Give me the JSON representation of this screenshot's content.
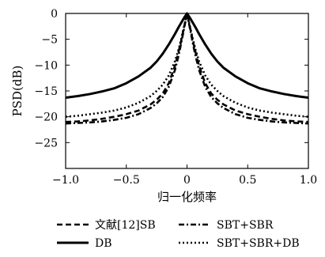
{
  "chart_data": {
    "type": "line",
    "xlabel": "归一化频率",
    "ylabel": "PSD(dB)",
    "xlim": [
      -1.0,
      1.0
    ],
    "ylim": [
      -30,
      0
    ],
    "x_ticks": [
      -1.0,
      -0.5,
      0,
      0.5,
      1.0
    ],
    "x_tick_labels": [
      "−1.0",
      "−0.5",
      "0",
      "0.5",
      "1.0"
    ],
    "y_ticks": [
      0,
      -5,
      -10,
      -15,
      -20,
      -25
    ],
    "y_tick_labels": [
      "0",
      "−5",
      "−10",
      "−15",
      "−20",
      "−25"
    ],
    "grid": false,
    "legend_position": "bottom",
    "x": [
      -1.0,
      -0.9,
      -0.8,
      -0.7,
      -0.6,
      -0.5,
      -0.4,
      -0.3,
      -0.25,
      -0.2,
      -0.15,
      -0.1,
      -0.07,
      -0.05,
      -0.03,
      -0.02,
      -0.01,
      0,
      0.01,
      0.02,
      0.03,
      0.05,
      0.07,
      0.1,
      0.15,
      0.2,
      0.25,
      0.3,
      0.4,
      0.5,
      0.6,
      0.7,
      0.8,
      0.9,
      1.0
    ],
    "series": [
      {
        "name": "文献[12]SB",
        "style": "dashed",
        "values": [
          -21.0,
          -20.9,
          -20.7,
          -20.4,
          -20.0,
          -19.5,
          -18.8,
          -17.6,
          -16.7,
          -15.5,
          -13.5,
          -10.2,
          -7.5,
          -5.5,
          -3.3,
          -2.2,
          -1.1,
          0,
          -1.1,
          -2.2,
          -3.3,
          -5.5,
          -7.5,
          -10.2,
          -13.5,
          -15.5,
          -16.7,
          -17.6,
          -18.8,
          -19.5,
          -20.0,
          -20.4,
          -20.7,
          -20.9,
          -21.0
        ]
      },
      {
        "name": "DB",
        "style": "solid",
        "values": [
          -16.3,
          -16.0,
          -15.6,
          -15.1,
          -14.5,
          -13.5,
          -12.2,
          -10.5,
          -9.3,
          -7.8,
          -6.0,
          -4.0,
          -2.7,
          -1.9,
          -1.1,
          -0.7,
          -0.35,
          0,
          -0.35,
          -0.7,
          -1.1,
          -1.9,
          -2.7,
          -4.0,
          -6.0,
          -7.8,
          -9.3,
          -10.5,
          -12.2,
          -13.5,
          -14.5,
          -15.1,
          -15.6,
          -16.0,
          -16.3
        ]
      },
      {
        "name": "SBT+SBR",
        "style": "dashdot",
        "values": [
          -21.3,
          -21.2,
          -21.1,
          -20.9,
          -20.6,
          -20.2,
          -19.5,
          -18.3,
          -17.4,
          -16.2,
          -14.2,
          -11.0,
          -8.2,
          -6.0,
          -3.6,
          -2.4,
          -1.2,
          0,
          -1.2,
          -2.4,
          -3.6,
          -6.0,
          -8.2,
          -11.0,
          -14.2,
          -16.2,
          -17.4,
          -18.3,
          -19.5,
          -20.2,
          -20.6,
          -20.9,
          -21.1,
          -21.2,
          -21.3
        ]
      },
      {
        "name": "SBT+SBR+DB",
        "style": "dotted",
        "values": [
          -20.0,
          -19.8,
          -19.5,
          -19.2,
          -18.8,
          -18.2,
          -17.3,
          -16.0,
          -15.0,
          -13.8,
          -12.0,
          -9.3,
          -7.0,
          -5.2,
          -3.1,
          -2.1,
          -1.0,
          0,
          -1.0,
          -2.1,
          -3.1,
          -5.2,
          -7.0,
          -9.3,
          -12.0,
          -13.8,
          -15.0,
          -16.0,
          -17.3,
          -18.2,
          -18.8,
          -19.2,
          -19.5,
          -19.8,
          -20.0
        ]
      }
    ]
  }
}
